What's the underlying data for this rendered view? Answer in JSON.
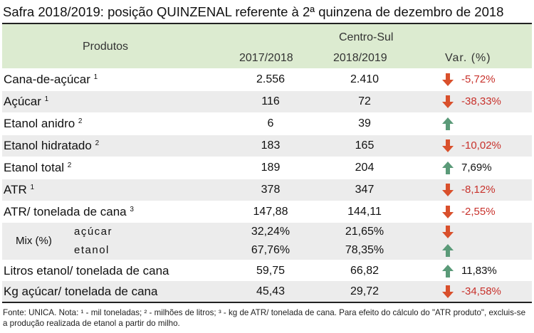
{
  "title": "Safra 2018/2019: posição QUINZENAL referente à 2ª quinzena de dezembro de 2018",
  "header": {
    "produtos": "Produtos",
    "region": "Centro-Sul",
    "col1": "2017/2018",
    "col2": "2018/2019",
    "col3": "Var. (%)"
  },
  "rows": [
    {
      "label": "Cana-de-açúcar",
      "sup": "1",
      "v1": "2.556",
      "v2": "2.410",
      "dir": "down",
      "var": "-5,72%"
    },
    {
      "label": "Açúcar",
      "sup": "1",
      "v1": "116",
      "v2": "72",
      "dir": "down",
      "var": "-38,33%"
    },
    {
      "label": "Etanol anidro",
      "sup": "2",
      "v1": "6",
      "v2": "39",
      "dir": "up",
      "var": ""
    },
    {
      "label": "Etanol hidratado",
      "sup": "2",
      "v1": "183",
      "v2": "165",
      "dir": "down",
      "var": "-10,02%"
    },
    {
      "label": "Etanol total",
      "sup": "2",
      "v1": "189",
      "v2": "204",
      "dir": "up",
      "var": "7,69%"
    },
    {
      "label": "ATR",
      "sup": "1",
      "v1": "378",
      "v2": "347",
      "dir": "down",
      "var": "-8,12%"
    },
    {
      "label": "ATR/ tonelada de cana",
      "sup": "3",
      "v1": "147,88",
      "v2": "144,11",
      "dir": "down",
      "var": "-2,55%"
    }
  ],
  "mix": {
    "label": "Mix (%)",
    "acucar": {
      "label": "açúcar",
      "v1": "32,24%",
      "v2": "21,65%",
      "dir": "down",
      "var": ""
    },
    "etanol": {
      "label": "etanol",
      "v1": "67,76%",
      "v2": "78,35%",
      "dir": "up",
      "var": ""
    }
  },
  "bottom_rows": [
    {
      "label": "Litros etanol/ tonelada de cana",
      "v1": "59,75",
      "v2": "66,82",
      "dir": "up",
      "var": "11,83%"
    },
    {
      "label": "Kg açúcar/ tonelada de cana",
      "v1": "45,43",
      "v2": "29,72",
      "dir": "down",
      "var": "-34,58%"
    }
  ],
  "footnote": "Fonte: UNICA. Nota: ¹ - mil toneladas; ² - milhões de litros; ³ - kg de ATR/ tonelada de cana. Para efeito do cálculo do \"ATR produto\", excluis-se a produção realizada de etanol a partir do milho.",
  "colors": {
    "header_bg": "#dcebd0",
    "shade": "#ececec",
    "down": "#d9502c",
    "up": "#5a9a78"
  }
}
